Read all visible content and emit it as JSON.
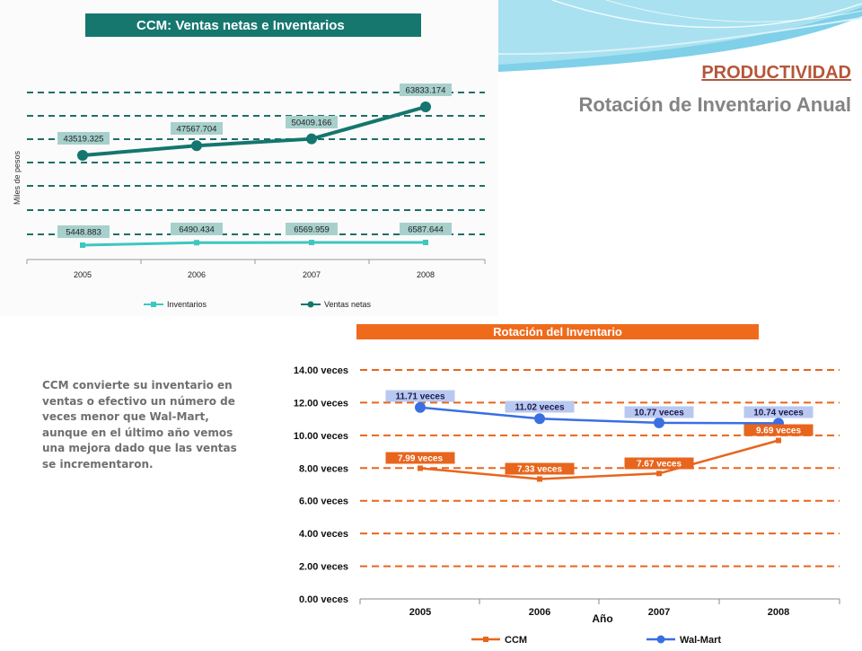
{
  "slide": {
    "section_link": "PRODUCTIVIDAD",
    "title": "Rotación de Inventario Anual",
    "note": "CCM convierte su inventario en ventas o efectivo un número de veces menor que Wal-Mart, aunque en el último año vemos una mejora dado que las ventas se incrementaron."
  },
  "colors": {
    "ventas": "#14766e",
    "inventarios": "#3dc7c0",
    "label_bg": "#a7d0cc",
    "chart1_banner": "#16776f",
    "chart2_banner": "#f06a1b",
    "ccm": "#e8651d",
    "walmart": "#3a6fe2",
    "walmart_label_bg": "#b9c8f0",
    "link": "#b5563a",
    "title": "#848484"
  },
  "chart_data": [
    {
      "type": "line",
      "title": "CCM: Ventas netas e Inventarios",
      "ylabel": "Miles de pesos",
      "xlabel": "",
      "categories": [
        "2005",
        "2006",
        "2007",
        "2008"
      ],
      "series": [
        {
          "name": "Inventarios",
          "values": [
            5448.883,
            6490.434,
            6569.959,
            6587.644
          ],
          "labels": [
            "5448.883",
            "6490.434",
            "6569.959",
            "6587.644"
          ]
        },
        {
          "name": "Ventas netas",
          "values": [
            43519.325,
            47567.704,
            50409.166,
            63833.174
          ],
          "labels": [
            "43519.325",
            "47567.704",
            "50409.166",
            "63833.174"
          ]
        }
      ],
      "gridlines": "dashed",
      "legend": "bottom"
    },
    {
      "type": "line",
      "title": "Rotación del Inventario",
      "xlabel": "Año",
      "ylabel": "",
      "ylim": [
        0,
        14
      ],
      "y_ticks": [
        "0.00 veces",
        "2.00 veces",
        "4.00 veces",
        "6.00 veces",
        "8.00 veces",
        "10.00 veces",
        "12.00 veces",
        "14.00 veces"
      ],
      "categories": [
        "2005",
        "2006",
        "2007",
        "2008"
      ],
      "series": [
        {
          "name": "CCM",
          "values": [
            7.99,
            7.33,
            7.67,
            9.69
          ],
          "labels": [
            "7.99 veces",
            "7.33 veces",
            "7.67 veces",
            "9.69 veces"
          ]
        },
        {
          "name": "Wal-Mart",
          "values": [
            11.71,
            11.02,
            10.77,
            10.74
          ],
          "labels": [
            "11.71 veces",
            "11.02 veces",
            "10.77 veces",
            "10.74 veces"
          ]
        }
      ],
      "gridlines": "dashed",
      "legend": "bottom"
    }
  ]
}
